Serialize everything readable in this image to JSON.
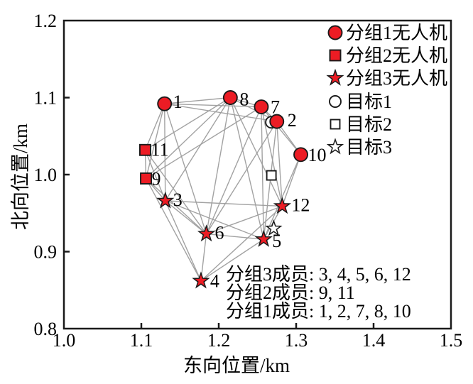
{
  "chart_data": {
    "type": "scatter",
    "title": "",
    "xlabel": "东向位置/km",
    "ylabel": "北向位置/km",
    "xlim": [
      1.0,
      1.5
    ],
    "ylim": [
      0.8,
      1.2
    ],
    "xticks": [
      "1.0",
      "1.1",
      "1.2",
      "1.3",
      "1.4",
      "1.5"
    ],
    "yticks": [
      "1.2",
      "1.1",
      "1.0",
      "0.9",
      "0.8"
    ],
    "grid": false,
    "legend_position": "upper-right-inside",
    "series": [
      {
        "name": "分组1无人机",
        "marker": "circle-filled",
        "points": [
          {
            "id": 1,
            "x": 1.13,
            "y": 1.092,
            "label": "1",
            "dx": 12,
            "dy": 6
          },
          {
            "id": 2,
            "x": 1.275,
            "y": 1.069,
            "label": "2",
            "dx": 15,
            "dy": 7
          },
          {
            "id": 7,
            "x": 1.255,
            "y": 1.088,
            "label": "7",
            "dx": 13,
            "dy": 9
          },
          {
            "id": 8,
            "x": 1.215,
            "y": 1.1,
            "label": "8",
            "dx": 13,
            "dy": 11
          },
          {
            "id": 10,
            "x": 1.306,
            "y": 1.026,
            "label": "10",
            "dx": 10,
            "dy": 9
          }
        ]
      },
      {
        "name": "分组2无人机",
        "marker": "square-filled",
        "points": [
          {
            "id": 9,
            "x": 1.106,
            "y": 0.995,
            "label": "9",
            "dx": 8,
            "dy": 9
          },
          {
            "id": 11,
            "x": 1.105,
            "y": 1.032,
            "label": "11",
            "dx": 8,
            "dy": 8
          }
        ]
      },
      {
        "name": "分组3无人机",
        "marker": "star-filled",
        "points": [
          {
            "id": 3,
            "x": 1.131,
            "y": 0.966,
            "label": "3",
            "dx": 11,
            "dy": 7
          },
          {
            "id": 4,
            "x": 1.177,
            "y": 0.862,
            "label": "4",
            "dx": 13,
            "dy": 9
          },
          {
            "id": 5,
            "x": 1.258,
            "y": 0.916,
            "label": "5",
            "dx": 12,
            "dy": 11
          },
          {
            "id": 6,
            "x": 1.184,
            "y": 0.923,
            "label": "6",
            "dx": 12,
            "dy": 7
          },
          {
            "id": 12,
            "x": 1.282,
            "y": 0.959,
            "label": "12",
            "dx": 13,
            "dy": 7
          }
        ]
      },
      {
        "name": "目标1",
        "marker": "circle-open",
        "points": [
          {
            "id": "t1",
            "x": 1.268,
            "y": 1.068,
            "label": "",
            "dx": 0,
            "dy": 0
          }
        ]
      },
      {
        "name": "目标2",
        "marker": "square-open",
        "points": [
          {
            "id": "t2",
            "x": 1.268,
            "y": 0.999,
            "label": "",
            "dx": 0,
            "dy": 0
          }
        ]
      },
      {
        "name": "目标3",
        "marker": "star-open",
        "points": [
          {
            "id": "t3",
            "x": 1.271,
            "y": 0.93,
            "label": "",
            "dx": 0,
            "dy": 0
          }
        ]
      }
    ],
    "edges": [
      [
        1,
        11
      ],
      [
        1,
        9
      ],
      [
        1,
        3
      ],
      [
        1,
        8
      ],
      [
        1,
        7
      ],
      [
        1,
        2
      ],
      [
        1,
        6
      ],
      [
        8,
        11
      ],
      [
        8,
        9
      ],
      [
        8,
        3
      ],
      [
        8,
        6
      ],
      [
        8,
        5
      ],
      [
        8,
        12
      ],
      [
        8,
        2
      ],
      [
        8,
        7
      ],
      [
        7,
        2
      ],
      [
        7,
        12
      ],
      [
        7,
        5
      ],
      [
        7,
        6
      ],
      [
        7,
        10
      ],
      [
        7,
        9
      ],
      [
        2,
        10
      ],
      [
        2,
        12
      ],
      [
        2,
        5
      ],
      [
        2,
        6
      ],
      [
        10,
        12
      ],
      [
        10,
        5
      ],
      [
        11,
        9
      ],
      [
        11,
        3
      ],
      [
        11,
        6
      ],
      [
        9,
        3
      ],
      [
        9,
        6
      ],
      [
        9,
        4
      ],
      [
        3,
        6
      ],
      [
        3,
        4
      ],
      [
        3,
        5
      ],
      [
        3,
        12
      ],
      [
        6,
        4
      ],
      [
        6,
        5
      ],
      [
        6,
        12
      ],
      [
        4,
        5
      ],
      [
        4,
        12
      ],
      [
        5,
        12
      ]
    ],
    "legend": [
      {
        "marker": "circle-filled",
        "label": "分组1无人机"
      },
      {
        "marker": "square-filled",
        "label": "分组2无人机"
      },
      {
        "marker": "star-filled",
        "label": "分组3无人机"
      },
      {
        "marker": "circle-open",
        "label": "目标1"
      },
      {
        "marker": "square-open",
        "label": "目标2"
      },
      {
        "marker": "star-open",
        "label": "目标3"
      }
    ],
    "annotations": [
      "分组3成员: 3, 4, 5, 6, 12",
      "分组2成员: 9, 11",
      "分组1成员: 1, 2, 7, 8, 10"
    ],
    "colors": {
      "marker_fill": "#ec1c24",
      "marker_stroke": "#1a1a1a",
      "edge_line": "#9d9d9d",
      "axis": "#1a1a1a",
      "text": "#000000",
      "background": "#ffffff"
    }
  }
}
